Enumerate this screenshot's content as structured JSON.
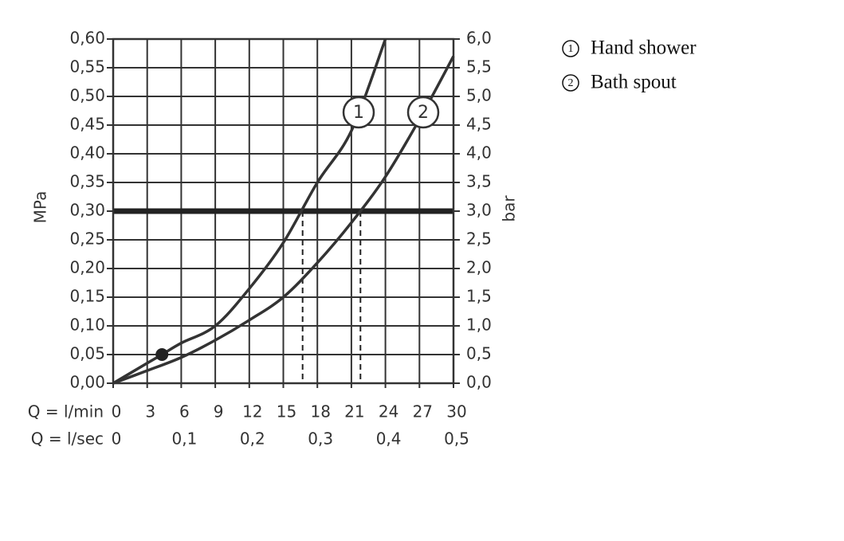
{
  "chart_data": {
    "type": "line",
    "x_axis_label": "Q = l/min",
    "x2_axis_label": "Q = l/sec",
    "y_axis_label": "MPa",
    "y2_axis_label": "bar",
    "xlim": [
      0,
      30
    ],
    "xticks": [
      0,
      3,
      6,
      9,
      12,
      15,
      18,
      21,
      24,
      27,
      30
    ],
    "x2lim": [
      0,
      0.5
    ],
    "x2ticks": [
      0,
      {
        "value": 0.1,
        "label": "0,1"
      },
      {
        "value": 0.2,
        "label": "0,2"
      },
      {
        "value": 0.3,
        "label": "0,3"
      },
      {
        "value": 0.4,
        "label": "0,4"
      },
      {
        "value": 0.5,
        "label": "0,5"
      }
    ],
    "ylim": [
      0,
      0.6
    ],
    "yticks": [
      {
        "value": 0,
        "label": "0,00"
      },
      {
        "value": 0.05,
        "label": "0,05"
      },
      {
        "value": 0.1,
        "label": "0,10"
      },
      {
        "value": 0.15,
        "label": "0,15"
      },
      {
        "value": 0.2,
        "label": "0,20"
      },
      {
        "value": 0.25,
        "label": "0,25"
      },
      {
        "value": 0.3,
        "label": "0,30"
      },
      {
        "value": 0.35,
        "label": "0,35"
      },
      {
        "value": 0.4,
        "label": "0,40"
      },
      {
        "value": 0.45,
        "label": "0,45"
      },
      {
        "value": 0.5,
        "label": "0,50"
      },
      {
        "value": 0.55,
        "label": "0,55"
      },
      {
        "value": 0.6,
        "label": "0,60"
      }
    ],
    "y2lim": [
      0,
      6
    ],
    "y2ticks": [
      {
        "value": 0,
        "label": "0,0"
      },
      {
        "value": 0.5,
        "label": "0,5"
      },
      {
        "value": 1,
        "label": "1,0"
      },
      {
        "value": 1.5,
        "label": "1,5"
      },
      {
        "value": 2,
        "label": "2,0"
      },
      {
        "value": 2.5,
        "label": "2,5"
      },
      {
        "value": 3,
        "label": "3,0"
      },
      {
        "value": 3.5,
        "label": "3,5"
      },
      {
        "value": 4,
        "label": "4,0"
      },
      {
        "value": 4.5,
        "label": "4,5"
      },
      {
        "value": 5,
        "label": "5,0"
      },
      {
        "value": 5.5,
        "label": "5,5"
      },
      {
        "value": 6,
        "label": "6,0"
      }
    ],
    "grid": true,
    "series": [
      {
        "name": "Hand shower",
        "label": "1",
        "color": "#333333",
        "x": [
          0,
          3,
          4.3,
          6,
          9,
          12,
          15,
          18,
          21,
          24
        ],
        "values": [
          0,
          0.035,
          0.05,
          0.07,
          0.1,
          0.165,
          0.245,
          0.35,
          0.44,
          0.6
        ]
      },
      {
        "name": "Bath spout",
        "label": "2",
        "color": "#333333",
        "x": [
          0,
          3,
          6,
          9,
          12,
          15,
          18,
          21,
          24,
          27,
          30
        ],
        "values": [
          0,
          0.022,
          0.045,
          0.075,
          0.11,
          0.15,
          0.21,
          0.28,
          0.36,
          0.46,
          0.57
        ]
      }
    ],
    "reference_line": 0.3,
    "drop_lines": [
      {
        "x": 16.7,
        "y": 0.3
      },
      {
        "x": 21.8,
        "y": 0.3
      }
    ],
    "operating_point": {
      "x": 4.3,
      "y": 0.05
    }
  }
}
